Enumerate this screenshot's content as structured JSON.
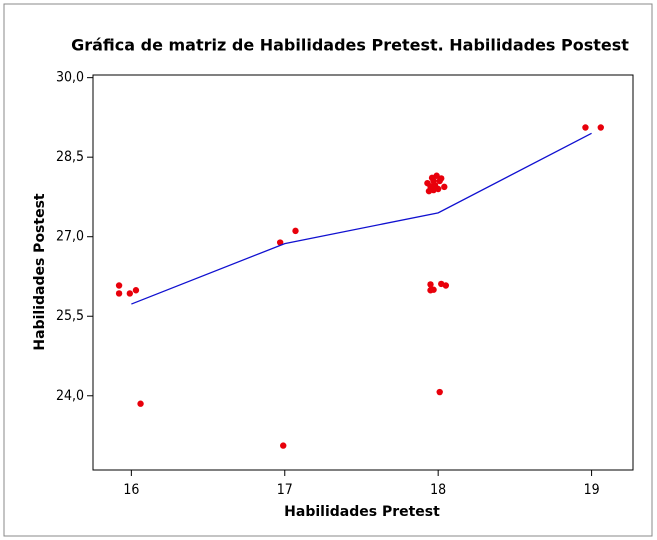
{
  "chart_data": {
    "type": "scatter",
    "title": "Gráfica de matriz de Habilidades Pretest. Habilidades Postest",
    "x_label": "Habilidades Pretest",
    "y_label": "Habilidades Postest",
    "xlim": [
      15.75,
      19.27
    ],
    "ylim": [
      22.6,
      30.05
    ],
    "xticks": [
      16,
      17,
      18,
      19
    ],
    "yticks": [
      {
        "value": 24,
        "label": "24,0"
      },
      {
        "value": 25.5,
        "label": "25,5"
      },
      {
        "value": 27,
        "label": "27,0"
      },
      {
        "value": 28.5,
        "label": "28,5"
      },
      {
        "value": 30,
        "label": "30,0"
      }
    ],
    "series": [
      {
        "type": "scatter",
        "color": "#e8000b",
        "x": [
          15.92,
          15.92,
          15.99,
          16.03,
          16.06,
          16.97,
          17.07,
          16.99,
          17.93,
          17.96,
          17.99,
          17.97,
          18.01,
          18.04,
          17.94,
          17.98,
          17.95,
          18.02,
          17.97,
          18.0,
          17.95,
          17.97,
          17.95,
          18.02,
          18.05,
          18.01,
          18.96,
          19.06
        ],
        "values": [
          26.08,
          25.93,
          25.93,
          25.99,
          23.85,
          26.89,
          27.11,
          23.06,
          28.01,
          28.11,
          28.15,
          27.88,
          28.05,
          27.94,
          27.86,
          27.97,
          27.95,
          28.1,
          28.05,
          27.9,
          26.1,
          26.0,
          25.99,
          26.11,
          26.08,
          24.07,
          29.06,
          29.06
        ]
      },
      {
        "type": "line",
        "color": "#1010d0",
        "x": [
          16,
          17,
          18,
          19
        ],
        "values": [
          25.73,
          26.87,
          27.45,
          28.95
        ]
      }
    ]
  }
}
